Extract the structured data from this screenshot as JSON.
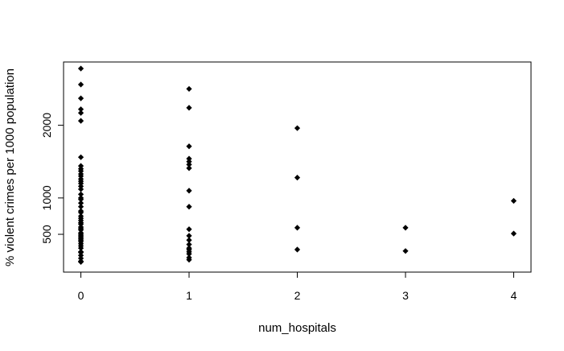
{
  "chart_data": {
    "type": "scatter",
    "title": "",
    "xlabel": "num_hospitals",
    "ylabel": "% violent crimes per 1000 population",
    "xlim": [
      -0.16,
      4.16
    ],
    "ylim": [
      -20,
      2870
    ],
    "x_ticks": [
      0,
      1,
      2,
      3,
      4
    ],
    "x_tick_labels": [
      "0",
      "1",
      "2",
      "3",
      "4"
    ],
    "y_ticks": [
      500,
      1000,
      2000
    ],
    "y_tick_labels": [
      "500",
      "1000",
      "2000"
    ],
    "grid": false,
    "legend": "none",
    "marker": "filled-diamond",
    "marker_color": "#000000",
    "series": [
      {
        "x": [
          0,
          0,
          0,
          0,
          0,
          0,
          0,
          0,
          0,
          0,
          0,
          0,
          0,
          0,
          0,
          0,
          0,
          0,
          0,
          0,
          0,
          0,
          0,
          0,
          0,
          0,
          0,
          0,
          0,
          0,
          0,
          0,
          0,
          0,
          0,
          0,
          0,
          0,
          0,
          0,
          0,
          0,
          0,
          0,
          0,
          0,
          0,
          0,
          1,
          1,
          1,
          1,
          1,
          1,
          1,
          1,
          1,
          1,
          1,
          1,
          1,
          1,
          1,
          1,
          1,
          1,
          1,
          2,
          2,
          2,
          2,
          3,
          3,
          4,
          4
        ],
        "y": [
          2780,
          2560,
          2370,
          2220,
          2170,
          2060,
          1560,
          1370,
          1300,
          1230,
          1200,
          1120,
          1050,
          980,
          930,
          880,
          820,
          750,
          690,
          660,
          600,
          560,
          520,
          480,
          460,
          440,
          400,
          370,
          340,
          310,
          260,
          210,
          170,
          130,
          120,
          640,
          720,
          800,
          1000,
          1160,
          1260,
          1330,
          1400,
          1440,
          580,
          500,
          420,
          250,
          2500,
          2240,
          1710,
          1540,
          1500,
          1460,
          1410,
          1100,
          880,
          570,
          480,
          420,
          360,
          310,
          290,
          260,
          230,
          180,
          150,
          1960,
          1280,
          590,
          290,
          590,
          270,
          960,
          510
        ]
      }
    ]
  }
}
